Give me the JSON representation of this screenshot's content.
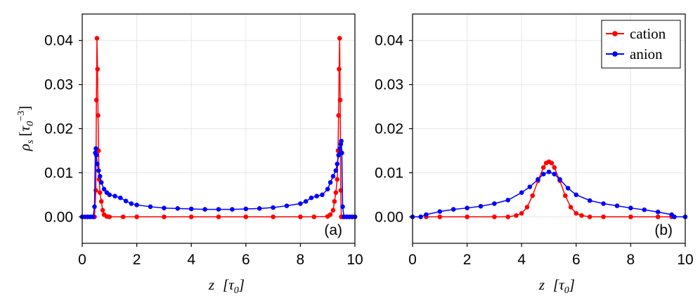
{
  "chart_data": [
    {
      "type": "line",
      "panel_label": "(a)",
      "xlabel": "z",
      "xlabel_unit": "[τ0]",
      "ylabel": "ρs",
      "ylabel_unit": "[τ0^-3]",
      "xlim": [
        0,
        10
      ],
      "ylim": [
        -0.006,
        0.046
      ],
      "xticks": [
        "0",
        "2",
        "4",
        "6",
        "8",
        "10"
      ],
      "yticks": [
        "0.00",
        "0.01",
        "0.02",
        "0.03",
        "0.04"
      ],
      "grid": true,
      "series": [
        {
          "name": "cation",
          "color": "#ff0000",
          "x": [
            0.0,
            0.1,
            0.2,
            0.3,
            0.4,
            0.45,
            0.5,
            0.52,
            0.54,
            0.56,
            0.58,
            0.6,
            0.62,
            0.65,
            0.7,
            0.75,
            0.8,
            0.9,
            1.0,
            1.5,
            2,
            3,
            4,
            5,
            6,
            7,
            8,
            8.5,
            9.0,
            9.1,
            9.2,
            9.25,
            9.3,
            9.35,
            9.38,
            9.4,
            9.42,
            9.44,
            9.46,
            9.48,
            9.5,
            9.55,
            9.6,
            9.7,
            9.8,
            9.9,
            10.0
          ],
          "y": [
            0,
            0,
            0,
            0,
            0,
            0,
            0.006,
            0.0265,
            0.0405,
            0.0335,
            0.023,
            0.015,
            0.0085,
            0.0055,
            0.0035,
            0.0015,
            0.0005,
            0.0001,
            0,
            0,
            0,
            0,
            0,
            0,
            0,
            0,
            0,
            0,
            0.0001,
            0.0005,
            0.0015,
            0.0035,
            0.0055,
            0.0085,
            0.015,
            0.023,
            0.0335,
            0.0405,
            0.0265,
            0.006,
            0,
            0,
            0,
            0,
            0,
            0,
            0
          ]
        },
        {
          "name": "anion",
          "color": "#0000ff",
          "x": [
            0.0,
            0.1,
            0.2,
            0.3,
            0.4,
            0.45,
            0.48,
            0.5,
            0.52,
            0.55,
            0.6,
            0.65,
            0.7,
            0.8,
            0.9,
            1.0,
            1.2,
            1.4,
            1.6,
            1.8,
            2.0,
            2.5,
            3.0,
            3.5,
            4.0,
            4.5,
            5.0,
            5.5,
            6.0,
            6.5,
            7.0,
            7.5,
            8.0,
            8.2,
            8.4,
            8.6,
            8.8,
            9.0,
            9.1,
            9.2,
            9.3,
            9.35,
            9.4,
            9.45,
            9.48,
            9.5,
            9.52,
            9.55,
            9.6,
            9.7,
            9.8,
            9.9,
            10.0
          ],
          "y": [
            0,
            0,
            0,
            0,
            0,
            0.0023,
            0.0145,
            0.0155,
            0.014,
            0.012,
            0.0105,
            0.0092,
            0.0078,
            0.0063,
            0.0055,
            0.005,
            0.0047,
            0.0043,
            0.0036,
            0.003,
            0.0027,
            0.0023,
            0.002,
            0.0019,
            0.0018,
            0.0017,
            0.0017,
            0.0017,
            0.0018,
            0.0019,
            0.0021,
            0.0025,
            0.003,
            0.0035,
            0.0043,
            0.0047,
            0.005,
            0.0063,
            0.0078,
            0.0092,
            0.0105,
            0.012,
            0.014,
            0.0155,
            0.0165,
            0.0172,
            0.0145,
            0.0023,
            0,
            0,
            0,
            0,
            0
          ]
        }
      ]
    },
    {
      "type": "line",
      "panel_label": "(b)",
      "xlabel": "z",
      "xlabel_unit": "[τ0]",
      "xlim": [
        0,
        10
      ],
      "ylim": [
        -0.006,
        0.046
      ],
      "xticks": [
        "0",
        "2",
        "4",
        "6",
        "8",
        "10"
      ],
      "yticks": [
        "0.00",
        "0.01",
        "0.02",
        "0.03",
        "0.04"
      ],
      "grid": true,
      "legend_placement": "top-right",
      "series": [
        {
          "name": "cation",
          "color": "#ff0000",
          "x": [
            0.5,
            1.0,
            2.0,
            3.0,
            3.5,
            3.8,
            4.0,
            4.2,
            4.4,
            4.6,
            4.8,
            4.9,
            5.0,
            5.1,
            5.2,
            5.4,
            5.6,
            5.8,
            6.0,
            6.2,
            6.5,
            7.0,
            8.0,
            9.0,
            9.5
          ],
          "y": [
            0,
            0,
            0,
            0,
            0,
            0.0003,
            0.0008,
            0.0022,
            0.0048,
            0.0082,
            0.0112,
            0.0122,
            0.0125,
            0.0122,
            0.0112,
            0.0082,
            0.0048,
            0.0022,
            0.0008,
            0.0003,
            0,
            0,
            0,
            0,
            0
          ]
        },
        {
          "name": "anion",
          "color": "#0000ff",
          "x": [
            0.0,
            0.3,
            0.5,
            1.0,
            1.5,
            2.0,
            2.5,
            3.0,
            3.5,
            4.0,
            4.3,
            4.6,
            4.8,
            5.0,
            5.2,
            5.4,
            5.7,
            6.0,
            6.5,
            7.0,
            7.5,
            8.0,
            8.5,
            9.0,
            9.5,
            9.6,
            10.0
          ],
          "y": [
            0,
            0,
            0.0005,
            0.0012,
            0.0017,
            0.002,
            0.0024,
            0.003,
            0.0038,
            0.0055,
            0.0068,
            0.0085,
            0.0097,
            0.0102,
            0.0097,
            0.0085,
            0.0065,
            0.005,
            0.0037,
            0.003,
            0.0025,
            0.002,
            0.0016,
            0.0011,
            0.0005,
            0,
            0
          ]
        }
      ]
    }
  ]
}
